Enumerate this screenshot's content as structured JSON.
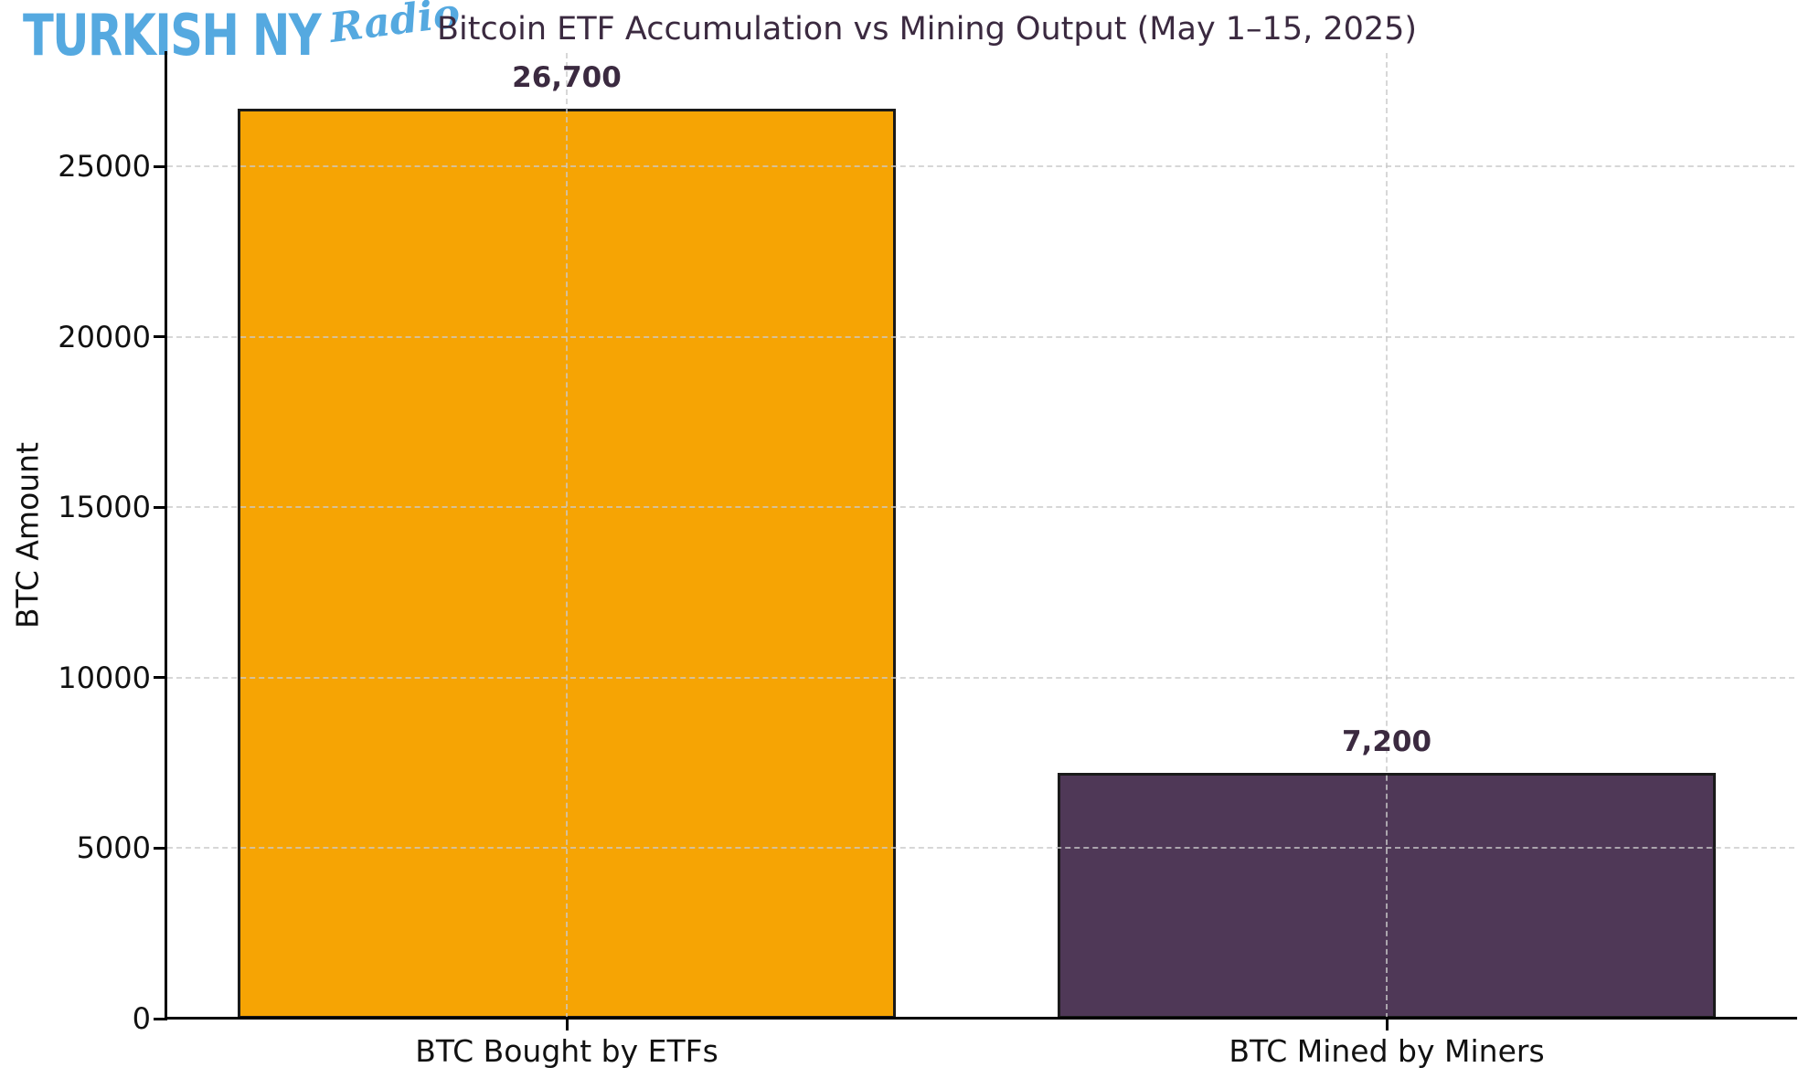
{
  "brand": {
    "name": "TURKISH NY",
    "suffix": "Radio",
    "color": "#55A9E0"
  },
  "title": {
    "text": "Bitcoin ETF Accumulation vs Mining Output (May 1–15, 2025)",
    "color": "#3B2A40"
  },
  "chart_data": {
    "type": "bar",
    "title": "Bitcoin ETF Accumulation vs Mining Output (May 1–15, 2025)",
    "categories": [
      "BTC Bought by ETFs",
      "BTC Mined by Miners"
    ],
    "values": [
      26700,
      7200
    ],
    "value_labels": [
      "26,700",
      "7,200"
    ],
    "bar_colors": [
      "#F6A404",
      "#4F3857"
    ],
    "bar_edge_color": "#1a1a1a",
    "value_label_color": "#3B2A40",
    "xlabel": "",
    "ylabel": "BTC Amount",
    "ylim": [
      0,
      28000
    ],
    "yticks": [
      0,
      5000,
      10000,
      15000,
      20000,
      25000
    ],
    "grid": "dashed horizontal and vertical gridlines",
    "grid_color": "#cacaca",
    "axis_color": "#000000",
    "legend": "none"
  }
}
